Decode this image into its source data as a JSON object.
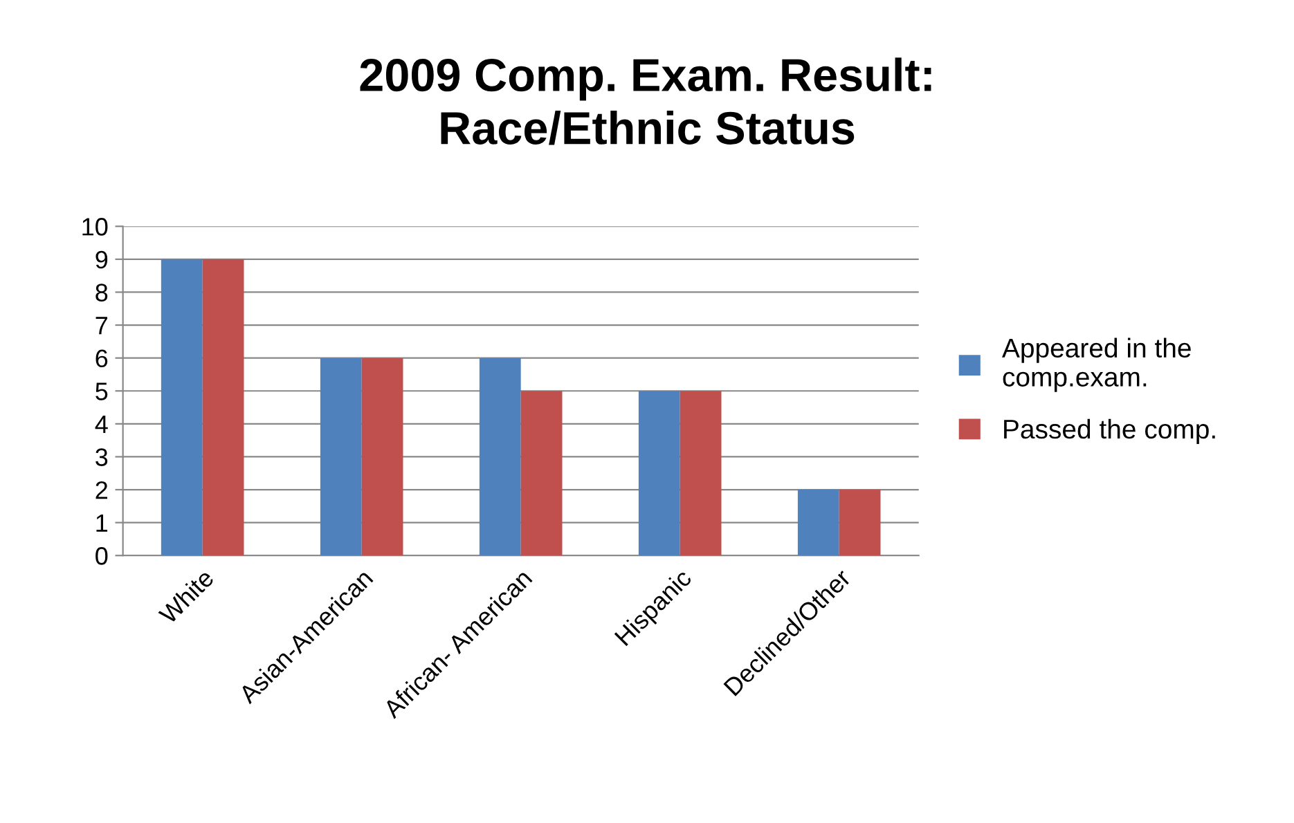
{
  "chart_data": {
    "type": "bar",
    "title": "2009 Comp. Exam. Result:\nRace/Ethnic Status",
    "categories": [
      "White",
      "Asian-American",
      "African- American",
      "Hispanic",
      "Declined/Other"
    ],
    "series": [
      {
        "name": "Appeared in the\ncomp.exam.",
        "color": "#4f81bd",
        "values": [
          9,
          6,
          6,
          5,
          2
        ]
      },
      {
        "name": "Passed the comp.",
        "color": "#c0504d",
        "values": [
          9,
          6,
          5,
          5,
          2
        ]
      }
    ],
    "ylim": [
      0,
      10
    ],
    "yticks": [
      0,
      1,
      2,
      3,
      4,
      5,
      6,
      7,
      8,
      9,
      10
    ],
    "grid": "y",
    "legend": "right"
  }
}
